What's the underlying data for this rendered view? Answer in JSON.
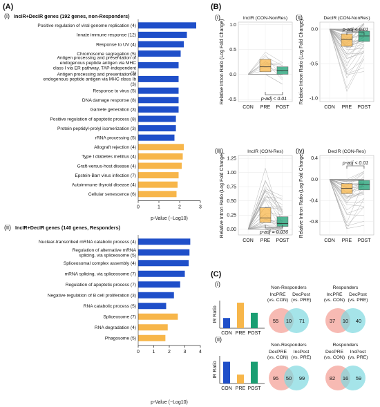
{
  "panel_labels": {
    "A": "(A)",
    "B": "(B)",
    "C": "(C)"
  },
  "chart_data": [
    {
      "type": "bar",
      "orientation": "horizontal",
      "sub_label": "(i)",
      "title": "IncIR+DecIR genes (192 genes, non-Responders)",
      "xlabel": "p-Value (−Log10)",
      "xlim": [
        0,
        3
      ],
      "xticks": [
        "0",
        "1",
        "2",
        "3"
      ],
      "colors": {
        "blue": "#1f4fc9",
        "orange": "#f7b64a"
      },
      "categories": [
        "Positive regulation of viral genome replication (4)",
        "Innate immune response (12)",
        "Response to UV (4)",
        "Chromosome segregation (5)",
        "Antigen processing and presentation of endogenous peptide antigen via MHC class I via ER pathway, TAP-independent (3)",
        "Antigen processing and presentation of endogenous peptide antigen via MHC class Ib (3)",
        "Response to virus (5)",
        "DNA damage response (8)",
        "Gamete generation (3)",
        "Positive regulation of apoptotic process (8)",
        "Protein peptidyl-prolyl isomerization (3)",
        "rRNA processing (5)",
        "Allograft rejection (4)",
        "Type I diabetes mellitus (4)",
        "Graft-versus-host disease (4)",
        "Epstein-Barr virus infection (7)",
        "Autoimmune thyroid disease (4)",
        "Cellular senescence (6)"
      ],
      "values": [
        2.8,
        2.35,
        2.2,
        2.05,
        1.95,
        1.95,
        1.95,
        1.95,
        1.95,
        1.82,
        1.82,
        1.75,
        2.2,
        2.15,
        2.1,
        1.95,
        1.9,
        1.85
      ],
      "bar_color": [
        "blue",
        "blue",
        "blue",
        "blue",
        "blue",
        "blue",
        "blue",
        "blue",
        "blue",
        "blue",
        "blue",
        "blue",
        "orange",
        "orange",
        "orange",
        "orange",
        "orange",
        "orange"
      ]
    },
    {
      "type": "bar",
      "orientation": "horizontal",
      "sub_label": "(ii)",
      "title": "IncIR+DecIR genes (140 genes, Responders)",
      "xlabel": "p-Value (−Log10)",
      "xlim": [
        0,
        4
      ],
      "xticks": [
        "0",
        "1",
        "2",
        "3",
        "4"
      ],
      "categories": [
        "Nuclear-transcribed mRNA catabolic process (4)",
        "Regulation of alternative mRNA splicing, via spliceosome (5)",
        "Spliceosomal complex assembly (4)",
        "mRNA splicing, via spliceosome (7)",
        "Regulation of apoptotic process (7)",
        "Negative regulation of B cell proliferation (3)",
        "RNA catabolic process (5)",
        "Spliceosome (7)",
        "RNA degradation (4)",
        "Phagosome (5)"
      ],
      "values": [
        3.35,
        3.3,
        3.25,
        3.0,
        2.7,
        2.3,
        1.8,
        2.55,
        1.9,
        1.75
      ],
      "bar_color": [
        "blue",
        "blue",
        "blue",
        "blue",
        "blue",
        "blue",
        "blue",
        "orange",
        "orange",
        "orange"
      ]
    },
    {
      "type": "box",
      "sub_label": "(i)",
      "title": "IncIR (CON-NonRes)",
      "ylabel": "Relative Intron Ratio (Log Fold Change)",
      "categories": [
        "CON",
        "PRE",
        "POST"
      ],
      "ylim": [
        -0.55,
        1.05
      ],
      "yticks": [
        "-0.5",
        "0.0",
        "0.5",
        "1.0"
      ],
      "annotation": "p-adj < 0.01",
      "boxes": [
        {
          "group": "PRE",
          "q1": 0.05,
          "median": 0.15,
          "q3": 0.3
        },
        {
          "group": "POST",
          "q1": 0.0,
          "median": 0.07,
          "q3": 0.15
        }
      ]
    },
    {
      "type": "box",
      "sub_label": "(ii)",
      "title": "DecIR (CON-NonRes)",
      "ylabel": "Relative Intron Ratio (Log Fold Change)",
      "categories": [
        "CON",
        "PRE",
        "POST"
      ],
      "ylim": [
        -1.05,
        0.1
      ],
      "yticks": [
        "0.0",
        "-0.5",
        "-1.0"
      ],
      "annotation": "p-adj < 0.01",
      "boxes": [
        {
          "group": "PRE",
          "q1": -0.25,
          "median": -0.15,
          "q3": -0.07
        },
        {
          "group": "POST",
          "q1": -0.18,
          "median": -0.1,
          "q3": -0.03
        }
      ]
    },
    {
      "type": "box",
      "sub_label": "(iii)",
      "title": "IncIR (CON-Res)",
      "ylabel": "Relative Intron Ratio (Log Fold Change)",
      "categories": [
        "CON",
        "PRE",
        "POST"
      ],
      "ylim": [
        -0.1,
        1.3
      ],
      "yticks": [
        "0.00",
        "0.25",
        "0.50",
        "0.75",
        "1.00",
        "1.25"
      ],
      "annotation": "p-adj = 0.036",
      "boxes": [
        {
          "group": "PRE",
          "q1": 0.12,
          "median": 0.2,
          "q3": 0.38
        },
        {
          "group": "POST",
          "q1": 0.05,
          "median": 0.1,
          "q3": 0.22
        }
      ]
    },
    {
      "type": "box",
      "sub_label": "(iv)",
      "title": "DecIR (CON-Res)",
      "ylabel": "Relative Intron Ratio (Log Fold Change)",
      "categories": [
        "CON",
        "PRE",
        "POST"
      ],
      "ylim": [
        -1.05,
        0.45
      ],
      "yticks": [
        "0.4",
        "0.0",
        "-0.4",
        "-0.8"
      ],
      "annotation": "p-adj < 0.01",
      "boxes": [
        {
          "group": "PRE",
          "q1": -0.27,
          "median": -0.17,
          "q3": -0.08
        },
        {
          "group": "POST",
          "q1": -0.2,
          "median": -0.1,
          "q3": -0.02
        }
      ]
    },
    {
      "type": "bar",
      "sub_label": "(i)",
      "ylabel": "IR Ratio",
      "categories": [
        "CON",
        "PRE",
        "POST"
      ],
      "values": [
        0.4,
        1.0,
        0.6
      ],
      "colors": [
        "#1f4fc9",
        "#f7b64a",
        "#1a9e72"
      ]
    },
    {
      "type": "bar",
      "sub_label": "(ii)",
      "ylabel": "IR Ratio",
      "categories": [
        "CON",
        "PRE",
        "POST"
      ],
      "values": [
        0.85,
        0.35,
        0.85
      ],
      "colors": [
        "#1f4fc9",
        "#f7b64a",
        "#1a9e72"
      ]
    }
  ],
  "venns": [
    {
      "title": "Non-Responders",
      "left": [
        "IncPRE",
        "(vs. CON)"
      ],
      "right": [
        "DecPost",
        "(vs. PRE)"
      ],
      "a": "55",
      "ab": "10",
      "b": "71"
    },
    {
      "title": "Responders",
      "left": [
        "IncPRE",
        "(vs. CON)"
      ],
      "right": [
        "DecPost",
        "(vs. PRE)"
      ],
      "a": "37",
      "ab": "10",
      "b": "40"
    },
    {
      "title": "Non-Responders",
      "left": [
        "DecPRE",
        "(vs. CON)"
      ],
      "right": [
        "IncPost",
        "(vs. PRE)"
      ],
      "a": "95",
      "ab": "50",
      "b": "99"
    },
    {
      "title": "Responders",
      "left": [
        "DecPRE",
        "(vs. CON)"
      ],
      "right": [
        "IncPost",
        "(vs. PRE)"
      ],
      "a": "82",
      "ab": "16",
      "b": "59"
    }
  ]
}
